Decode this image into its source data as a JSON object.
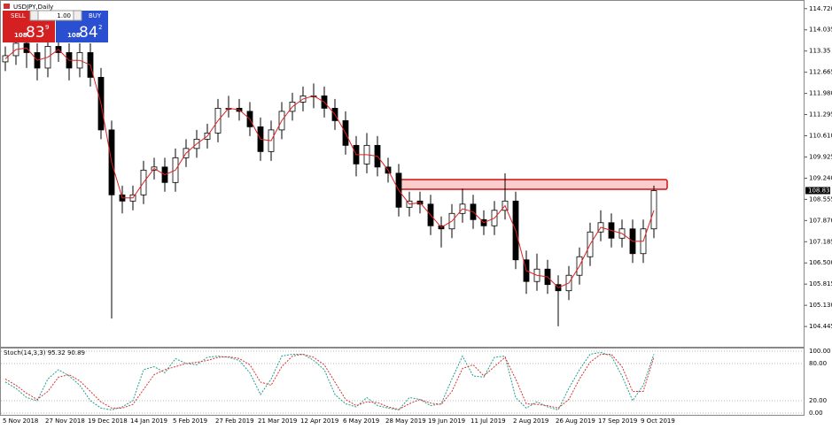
{
  "window": {
    "title": "USDJPY,Daily"
  },
  "trade_panel": {
    "sell": "SELL",
    "buy": "BUY",
    "volume": "1.00",
    "sell_price": [
      "108",
      "83",
      "9"
    ],
    "buy_price": [
      "108",
      "84",
      "2"
    ]
  },
  "chart_data": [
    {
      "type": "candlestick",
      "categories": [
        "5 Nov 2018",
        null,
        null,
        null,
        "27 Nov 2018",
        null,
        null,
        null,
        "19 Dec 2018",
        null,
        null,
        null,
        "14 Jan 2019",
        null,
        null,
        null,
        "5 Feb 2019",
        null,
        null,
        null,
        "27 Feb 2019",
        null,
        null,
        null,
        "21 Mar 2019",
        null,
        null,
        null,
        "12 Apr 2019",
        null,
        null,
        null,
        "6 May 2019",
        null,
        null,
        null,
        "28 May 2019",
        null,
        null,
        null,
        "19 Jun 2019",
        null,
        null,
        null,
        "11 Jul 2019",
        null,
        null,
        null,
        "2 Aug 2019",
        null,
        null,
        null,
        "26 Aug 2019",
        null,
        null,
        null,
        "17 Sep 2019",
        null,
        null,
        null,
        "9 Oct 2019",
        null
      ],
      "open": [
        113.0,
        113.2,
        113.6,
        113.3,
        112.8,
        113.5,
        113.3,
        112.8,
        113.3,
        112.5,
        110.8,
        108.7,
        108.5,
        108.7,
        109.5,
        109.6,
        109.1,
        109.9,
        110.2,
        110.5,
        110.7,
        111.5,
        111.5,
        111.4,
        110.9,
        110.1,
        110.8,
        111.4,
        111.7,
        111.9,
        111.9,
        111.5,
        111.1,
        110.3,
        109.7,
        110.3,
        109.6,
        109.4,
        108.3,
        108.5,
        108.4,
        107.7,
        107.6,
        108.1,
        108.4,
        107.9,
        107.7,
        108.2,
        108.5,
        106.6,
        105.9,
        106.3,
        105.8,
        105.6,
        106.1,
        106.7,
        107.5,
        107.8,
        107.3,
        107.6,
        106.8,
        107.6
      ],
      "high": [
        113.5,
        113.9,
        113.9,
        113.6,
        113.8,
        113.8,
        113.6,
        113.6,
        113.6,
        112.8,
        111.1,
        109.0,
        109.0,
        109.8,
        109.9,
        109.9,
        110.2,
        110.5,
        110.8,
        111.0,
        111.8,
        111.9,
        111.8,
        111.7,
        111.2,
        111.1,
        111.7,
        112.0,
        112.2,
        112.3,
        112.2,
        111.8,
        111.4,
        110.6,
        110.7,
        110.6,
        109.9,
        109.7,
        108.8,
        108.8,
        108.7,
        108.0,
        108.4,
        108.9,
        108.7,
        108.2,
        108.5,
        109.4,
        108.8,
        106.9,
        106.8,
        106.6,
        106.1,
        106.4,
        107.0,
        107.8,
        108.2,
        108.1,
        107.9,
        107.9,
        107.9,
        109.0
      ],
      "low": [
        112.7,
        112.9,
        112.8,
        112.4,
        112.5,
        113.0,
        112.4,
        112.5,
        112.2,
        110.5,
        104.7,
        108.1,
        108.2,
        108.4,
        109.2,
        108.8,
        108.8,
        109.6,
        109.9,
        110.2,
        110.4,
        111.2,
        111.1,
        110.6,
        109.8,
        109.8,
        110.5,
        111.1,
        111.4,
        111.5,
        111.2,
        110.8,
        110.0,
        109.3,
        109.4,
        109.3,
        109.1,
        108.0,
        108.0,
        108.1,
        107.4,
        107.0,
        107.3,
        107.8,
        107.6,
        107.4,
        107.4,
        107.9,
        106.3,
        105.5,
        105.6,
        105.5,
        104.45,
        105.3,
        105.8,
        106.4,
        107.2,
        107.0,
        107.0,
        106.5,
        106.5,
        107.3
      ],
      "close": [
        113.2,
        113.6,
        113.3,
        112.8,
        113.5,
        113.3,
        112.8,
        113.3,
        112.5,
        110.8,
        108.7,
        108.5,
        108.7,
        109.5,
        109.6,
        109.1,
        109.9,
        110.2,
        110.5,
        110.7,
        111.5,
        111.5,
        111.4,
        110.9,
        110.1,
        110.8,
        111.4,
        111.7,
        111.9,
        111.9,
        111.5,
        111.1,
        110.3,
        109.7,
        110.3,
        109.6,
        109.4,
        108.3,
        108.5,
        108.4,
        107.7,
        107.6,
        108.1,
        108.4,
        107.9,
        107.7,
        108.2,
        108.5,
        106.6,
        105.9,
        106.3,
        105.8,
        105.6,
        106.1,
        106.7,
        107.5,
        107.8,
        107.3,
        107.6,
        106.8,
        107.6,
        108.839
      ],
      "ma": {
        "color": "#e02020",
        "values": [
          113.1,
          113.4,
          113.45,
          113.05,
          113.15,
          113.4,
          113.05,
          113.05,
          112.9,
          111.65,
          109.75,
          108.6,
          108.6,
          109.1,
          109.55,
          109.35,
          109.5,
          110.05,
          110.35,
          110.6,
          111.1,
          111.5,
          111.45,
          111.15,
          110.5,
          110.45,
          111.1,
          111.55,
          111.8,
          111.9,
          111.7,
          111.3,
          110.7,
          110.0,
          110.0,
          109.95,
          109.5,
          108.85,
          108.4,
          108.45,
          108.05,
          107.65,
          107.85,
          108.25,
          108.15,
          107.8,
          107.95,
          108.35,
          107.55,
          106.25,
          106.1,
          106.05,
          105.7,
          105.85,
          106.4,
          107.1,
          107.65,
          107.55,
          107.45,
          107.2,
          107.2,
          108.2
        ]
      },
      "up_color": "#ffffff",
      "down_color": "#000000",
      "ylim": [
        103.79,
        115.0
      ],
      "yticks": [
        {
          "value": 114.72,
          "label": "114.720"
        },
        114.035,
        113.35,
        112.665,
        {
          "value": 111.98,
          "label": "111.980"
        },
        111.295,
        {
          "value": 110.61,
          "label": "110.610"
        },
        109.925,
        {
          "value": 109.24,
          "label": "109.240"
        },
        108.555,
        {
          "value": 107.87,
          "label": "107.870"
        },
        107.185,
        {
          "value": 106.5,
          "label": "106.500"
        },
        105.815,
        {
          "value": 105.13,
          "label": "105.130"
        },
        104.445
      ],
      "last_price": 108.839
    },
    {
      "type": "line",
      "title": "Stoch(14,3,3) 95.32 90.89",
      "series": [
        {
          "color": "#1e9e8e",
          "values": [
            50,
            40,
            25,
            20,
            55,
            70,
            60,
            45,
            20,
            8,
            5,
            10,
            20,
            70,
            75,
            65,
            88,
            80,
            78,
            90,
            92,
            90,
            85,
            65,
            30,
            55,
            92,
            95,
            95,
            85,
            70,
            30,
            15,
            10,
            25,
            12,
            8,
            5,
            25,
            22,
            12,
            15,
            55,
            92,
            60,
            58,
            90,
            92,
            25,
            8,
            18,
            10,
            5,
            40,
            70,
            95,
            98,
            92,
            60,
            20,
            45,
            95.32
          ]
        },
        {
          "color": "#e03030",
          "values": [
            55,
            45,
            32,
            22,
            35,
            58,
            62,
            52,
            35,
            18,
            8,
            8,
            14,
            38,
            62,
            70,
            75,
            80,
            82,
            85,
            90,
            91,
            88,
            78,
            50,
            45,
            75,
            92,
            95,
            90,
            78,
            50,
            22,
            12,
            18,
            17,
            10,
            6,
            15,
            22,
            16,
            14,
            35,
            72,
            78,
            60,
            75,
            90,
            55,
            15,
            14,
            12,
            8,
            22,
            55,
            82,
            95,
            95,
            75,
            35,
            35,
            90.89
          ]
        }
      ],
      "ylim": [
        -2.9,
        105.7
      ],
      "yticks": [
        {
          "value": 100,
          "label": "100.00"
        },
        {
          "value": 80,
          "label": "80.00"
        },
        {
          "value": 20,
          "label": "20.00"
        },
        {
          "value": 0,
          "label": "0.00"
        }
      ]
    }
  ]
}
